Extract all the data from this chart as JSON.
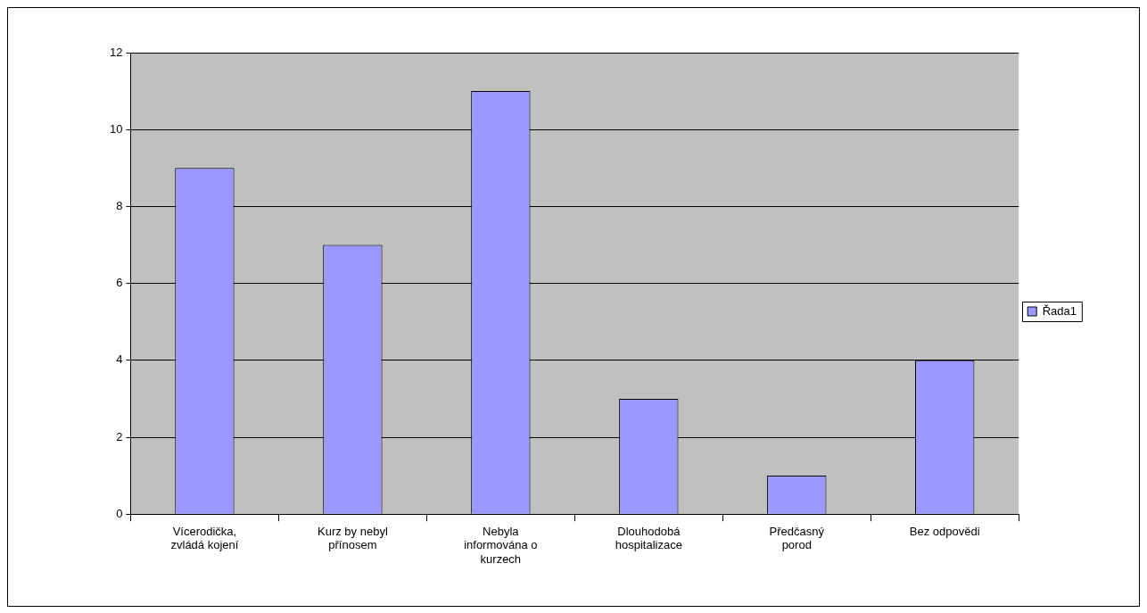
{
  "chart_data": {
    "type": "bar",
    "categories": [
      "Vícerodička, zvládá kojení",
      "Kurz by nebyl přínosem",
      "Nebyla informována o kurzech",
      "Dlouhodobá hospitalizace",
      "Předčasný porod",
      "Bez odpovědi"
    ],
    "series": [
      {
        "name": "Řada1",
        "color": "#9999ff",
        "values": [
          9,
          7,
          11,
          3,
          1,
          4
        ]
      }
    ],
    "ylim": [
      0,
      12
    ],
    "yticks": [
      0,
      2,
      4,
      6,
      8,
      10,
      12
    ],
    "grid": "y",
    "legend": "right"
  }
}
